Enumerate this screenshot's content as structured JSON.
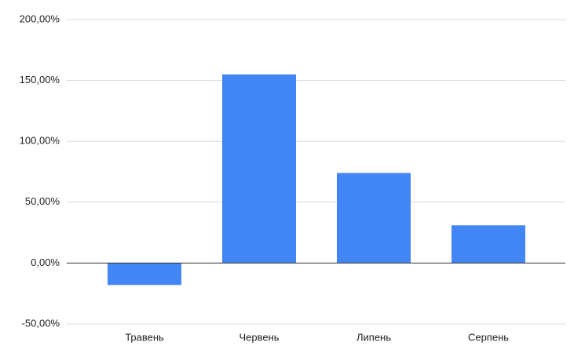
{
  "chart_data": {
    "type": "bar",
    "categories": [
      "Травень",
      "Червень",
      "Липень",
      "Серпень"
    ],
    "values": [
      -18,
      155,
      74,
      31
    ],
    "color": "#4285f4",
    "ylim": [
      -50,
      200
    ],
    "yticks": [
      {
        "value": -50,
        "label": "-50,00%"
      },
      {
        "value": 0,
        "label": "0,00%"
      },
      {
        "value": 50,
        "label": "50,00%"
      },
      {
        "value": 100,
        "label": "100,00%"
      },
      {
        "value": 150,
        "label": "150,00%"
      },
      {
        "value": 200,
        "label": "200,00%"
      }
    ],
    "grid": true
  }
}
